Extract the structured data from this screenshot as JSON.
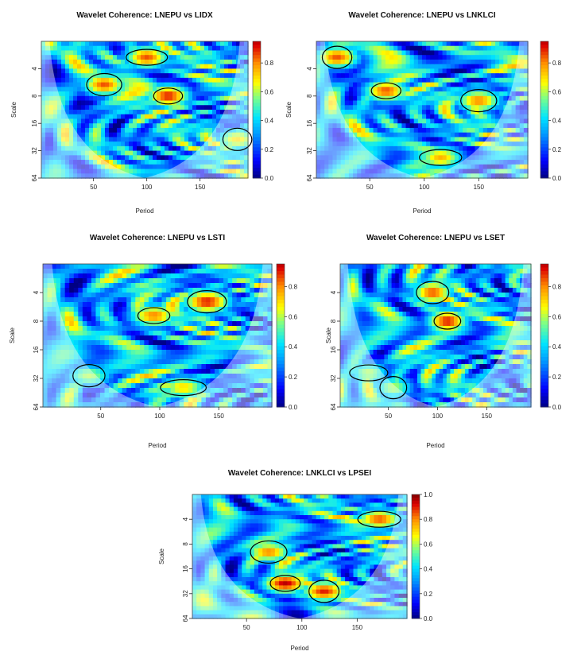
{
  "chart_data": [
    {
      "type": "heatmap",
      "title": "Wavelet Coherence: LNEPU vs LIDX",
      "xlabel": "Period",
      "ylabel": "Scale",
      "xticks": [
        50,
        100,
        150
      ],
      "yticks": [
        4,
        8,
        16,
        32,
        64
      ],
      "xlim": [
        1,
        195
      ],
      "ylim": [
        2,
        64
      ],
      "colorbar": {
        "ticks": [
          0.0,
          0.2,
          0.4,
          0.6,
          0.8
        ],
        "range": [
          0,
          0.95
        ]
      },
      "significant_regions": [
        {
          "x": 120,
          "scale": 8,
          "level": 0.9
        },
        {
          "x": 60,
          "scale": 6,
          "level": 0.85
        },
        {
          "x": 100,
          "scale": 3,
          "level": 0.85
        },
        {
          "x": 185,
          "scale": 24,
          "level": 0.7
        }
      ]
    },
    {
      "type": "heatmap",
      "title": "Wavelet Coherence: LNEPU vs LNKLCI",
      "xlabel": "Period",
      "ylabel": "Scale",
      "xticks": [
        50,
        100,
        150
      ],
      "yticks": [
        4,
        8,
        16,
        32,
        64
      ],
      "xlim": [
        1,
        195
      ],
      "ylim": [
        2,
        64
      ],
      "colorbar": {
        "ticks": [
          0.0,
          0.2,
          0.4,
          0.6,
          0.8
        ],
        "range": [
          0,
          0.95
        ]
      },
      "significant_regions": [
        {
          "x": 65,
          "scale": 7,
          "level": 0.85
        },
        {
          "x": 150,
          "scale": 9,
          "level": 0.8
        },
        {
          "x": 115,
          "scale": 38,
          "level": 0.75
        },
        {
          "x": 20,
          "scale": 3,
          "level": 0.85
        }
      ]
    },
    {
      "type": "heatmap",
      "title": "Wavelet Coherence: LNEPU vs LSTI",
      "xlabel": "Period",
      "ylabel": "Scale",
      "xticks": [
        50,
        100,
        150
      ],
      "yticks": [
        4,
        8,
        16,
        32,
        64
      ],
      "xlim": [
        1,
        195
      ],
      "ylim": [
        2,
        64
      ],
      "colorbar": {
        "ticks": [
          0.0,
          0.2,
          0.4,
          0.6,
          0.8
        ],
        "range": [
          0,
          0.95
        ]
      },
      "significant_regions": [
        {
          "x": 95,
          "scale": 7,
          "level": 0.8
        },
        {
          "x": 140,
          "scale": 5,
          "level": 0.9
        },
        {
          "x": 120,
          "scale": 40,
          "level": 0.7
        },
        {
          "x": 40,
          "scale": 30,
          "level": 0.6
        }
      ]
    },
    {
      "type": "heatmap",
      "title": "Wavelet Coherence: LNEPU vs LSET",
      "xlabel": "Period",
      "ylabel": "Scale",
      "xticks": [
        50,
        100,
        150
      ],
      "yticks": [
        4,
        8,
        16,
        32,
        64
      ],
      "xlim": [
        1,
        195
      ],
      "ylim": [
        2,
        64
      ],
      "colorbar": {
        "ticks": [
          0.0,
          0.2,
          0.4,
          0.6,
          0.8
        ],
        "range": [
          0,
          0.95
        ]
      },
      "significant_regions": [
        {
          "x": 110,
          "scale": 8,
          "level": 0.9
        },
        {
          "x": 95,
          "scale": 4,
          "level": 0.85
        },
        {
          "x": 30,
          "scale": 28,
          "level": 0.6
        },
        {
          "x": 55,
          "scale": 40,
          "level": 0.6
        }
      ]
    },
    {
      "type": "heatmap",
      "title": "Wavelet Coherence: LNKLCI vs LPSEI",
      "xlabel": "Period",
      "ylabel": "Scale",
      "xticks": [
        50,
        100,
        150
      ],
      "yticks": [
        4,
        8,
        16,
        32,
        64
      ],
      "xlim": [
        1,
        195
      ],
      "ylim": [
        2,
        64
      ],
      "colorbar": {
        "ticks": [
          0.0,
          0.2,
          0.4,
          0.6,
          0.8,
          1.0
        ],
        "range": [
          0,
          1.0
        ]
      },
      "significant_regions": [
        {
          "x": 85,
          "scale": 24,
          "level": 0.95
        },
        {
          "x": 70,
          "scale": 10,
          "level": 0.8
        },
        {
          "x": 170,
          "scale": 4,
          "level": 0.85
        },
        {
          "x": 120,
          "scale": 30,
          "level": 0.9
        }
      ]
    }
  ],
  "colors": {
    "low": "#00008b",
    "mid": "#00bfff",
    "high": "#b40000",
    "outside_cone_tint": "#ffffff",
    "contour": "#000000"
  }
}
